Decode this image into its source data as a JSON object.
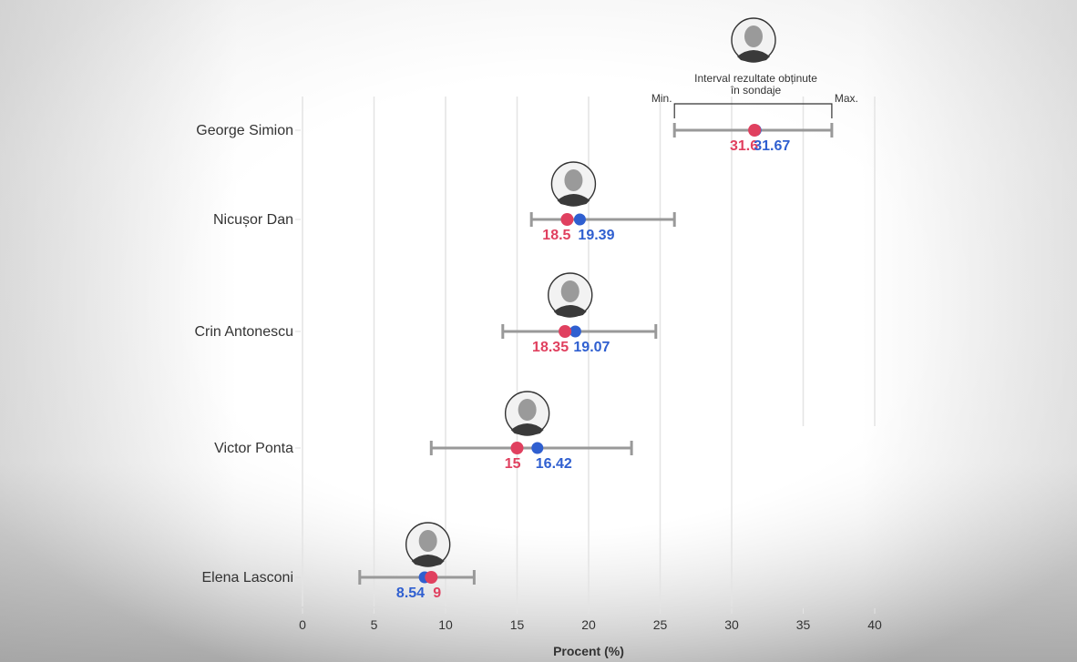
{
  "chart_data": {
    "type": "range-dot",
    "title": "",
    "xlabel": "Procent (%)",
    "ylabel": "",
    "xlim": [
      0,
      40
    ],
    "xticks": [
      0,
      5,
      10,
      15,
      20,
      25,
      30,
      35,
      40
    ],
    "grid": true,
    "colors": {
      "red": "#e0405f",
      "blue": "#2f5fd0",
      "range": "#999999",
      "grid": "#e4e4e4",
      "text": "#333333"
    },
    "legend": {
      "title_line1": "Interval rezultate obținute",
      "title_line2": "în sondaje",
      "min_label": "Min.",
      "max_label": "Max.",
      "placement": "top-right"
    },
    "series": [
      {
        "name": "red",
        "color": "#e0405f"
      },
      {
        "name": "blue",
        "color": "#2f5fd0"
      }
    ],
    "candidates": [
      {
        "name": "George Simion",
        "min": 26,
        "max": 37,
        "red": 31.6,
        "blue": 31.67,
        "red_label": "31.6",
        "blue_label": "31.67",
        "photo": "george-simion-photo"
      },
      {
        "name": "Nicușor Dan",
        "min": 16,
        "max": 26,
        "red": 18.5,
        "blue": 19.39,
        "red_label": "18.5",
        "blue_label": "19.39",
        "photo": "nicusor-dan-photo"
      },
      {
        "name": "Crin Antonescu",
        "min": 14,
        "max": 24.7,
        "red": 18.35,
        "blue": 19.07,
        "red_label": "18.35",
        "blue_label": "19.07",
        "photo": "crin-antonescu-photo"
      },
      {
        "name": "Victor Ponta",
        "min": 9,
        "max": 23,
        "red": 15,
        "blue": 16.42,
        "red_label": "15",
        "blue_label": "16.42",
        "photo": "victor-ponta-photo"
      },
      {
        "name": "Elena Lasconi",
        "min": 4,
        "max": 12,
        "red": 9,
        "blue": 8.54,
        "red_label": "9",
        "blue_label": "8.54",
        "photo": "elena-lasconi-photo"
      }
    ]
  }
}
